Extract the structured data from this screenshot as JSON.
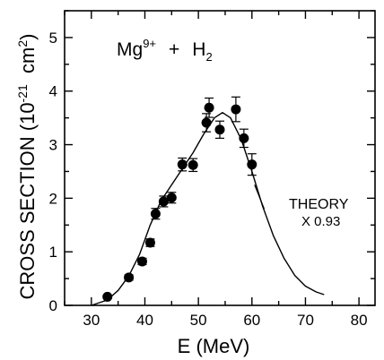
{
  "chart_data": {
    "type": "scatter",
    "xlabel": "E  (MeV)",
    "ylabel": "CROSS  SECTION  (10",
    "ylabel_exp": "-21",
    "ylabel_unit": "cm",
    "ylabel_unit_exp": "2",
    "ylabel_close": ")",
    "xlim": [
      25,
      83
    ],
    "ylim": [
      0,
      5.5
    ],
    "xticks": [
      30,
      40,
      50,
      60,
      70,
      80
    ],
    "yticks": [
      0,
      1,
      2,
      3,
      4,
      5
    ],
    "grid": false,
    "legend": "none",
    "annotation": {
      "base": "Mg",
      "charge": "9+",
      "plus": "+",
      "target": "H",
      "target_sub": "2"
    },
    "theory_label": "THEORY",
    "theory_scale": "X 0.93",
    "series": [
      {
        "type": "scatter",
        "marker": "filled-circle",
        "points": [
          {
            "x": 33.0,
            "y": 0.16,
            "err": 0.03
          },
          {
            "x": 37.0,
            "y": 0.52,
            "err": 0.05
          },
          {
            "x": 39.5,
            "y": 0.82,
            "err": 0.06
          },
          {
            "x": 41.0,
            "y": 1.17,
            "err": 0.07
          },
          {
            "x": 42.0,
            "y": 1.71,
            "err": 0.1
          },
          {
            "x": 43.5,
            "y": 1.94,
            "err": 0.1
          },
          {
            "x": 45.0,
            "y": 2.01,
            "err": 0.1
          },
          {
            "x": 47.0,
            "y": 2.63,
            "err": 0.12
          },
          {
            "x": 49.0,
            "y": 2.62,
            "err": 0.12
          },
          {
            "x": 51.5,
            "y": 3.41,
            "err": 0.17
          },
          {
            "x": 52.0,
            "y": 3.69,
            "err": 0.18
          },
          {
            "x": 54.0,
            "y": 3.28,
            "err": 0.16
          },
          {
            "x": 57.0,
            "y": 3.66,
            "err": 0.23
          },
          {
            "x": 58.5,
            "y": 3.12,
            "err": 0.17
          },
          {
            "x": 60.0,
            "y": 2.63,
            "err": 0.2
          }
        ]
      },
      {
        "type": "line",
        "x": [
          30,
          33,
          35,
          37,
          39,
          41,
          43,
          45,
          47,
          49,
          51,
          53,
          54.5,
          56,
          58,
          60,
          62,
          64,
          66,
          68,
          70,
          72,
          73.5
        ],
        "y": [
          0.0,
          0.1,
          0.28,
          0.55,
          0.95,
          1.5,
          1.95,
          2.25,
          2.55,
          2.85,
          3.2,
          3.5,
          3.6,
          3.5,
          3.1,
          2.5,
          1.85,
          1.3,
          0.88,
          0.56,
          0.36,
          0.25,
          0.2
        ]
      }
    ]
  }
}
